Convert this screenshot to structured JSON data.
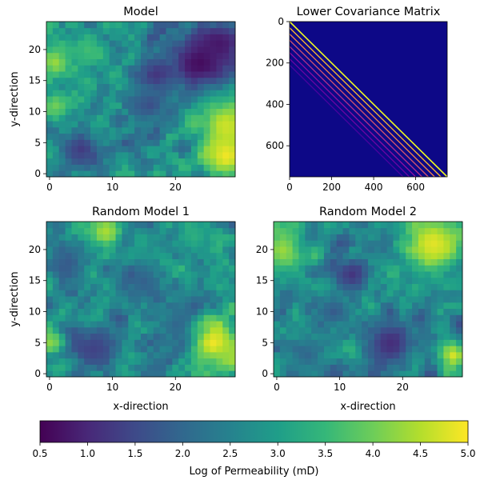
{
  "figure": {
    "colorbar": {
      "label": "Log of Permeability (mD)",
      "range": [
        0.5,
        5.0
      ],
      "ticks": [
        "0.5",
        "1.0",
        "1.5",
        "2.0",
        "2.5",
        "3.0",
        "3.5",
        "4.0",
        "4.5",
        "5.0"
      ],
      "colormap": "viridis"
    }
  },
  "chart_data": [
    {
      "type": "heatmap",
      "title": "Model",
      "xlabel": "",
      "ylabel": "y-direction",
      "nx": 30,
      "ny": 25,
      "x_ticks": [
        0,
        10,
        20
      ],
      "y_ticks": [
        0,
        5,
        10,
        15,
        20
      ],
      "value_range": [
        0.5,
        5.0
      ],
      "features": [
        {
          "x": 24,
          "y": 18,
          "r": 3.5,
          "value": 0.6
        },
        {
          "x": 27,
          "y": 21,
          "r": 2.5,
          "value": 0.8
        },
        {
          "x": 17,
          "y": 16,
          "r": 2.0,
          "value": 1.2
        },
        {
          "x": 5,
          "y": 4,
          "r": 2.2,
          "value": 1.3
        },
        {
          "x": 16,
          "y": 11,
          "r": 2.0,
          "value": 1.6
        },
        {
          "x": 28,
          "y": 8,
          "r": 3.0,
          "value": 4.6
        },
        {
          "x": 28,
          "y": 3,
          "r": 2.5,
          "value": 4.9
        },
        {
          "x": 1,
          "y": 18,
          "r": 1.8,
          "value": 4.3
        },
        {
          "x": 1,
          "y": 11,
          "r": 1.5,
          "value": 4.0
        },
        {
          "x": 6,
          "y": 20,
          "r": 2.0,
          "value": 3.6
        }
      ]
    },
    {
      "type": "heatmap",
      "title": "Lower Covariance Matrix",
      "xlabel": "",
      "ylabel": "",
      "nx": 750,
      "ny": 750,
      "x_ticks": [
        0,
        200,
        400,
        600
      ],
      "y_ticks": [
        0,
        200,
        400,
        600
      ],
      "y_inverted": true,
      "colormap": "plasma",
      "background_value": 0,
      "structure": "banded lower-triangular, bright diagonal bands at offsets of 30 (grid width)",
      "band_offsets": [
        0,
        30,
        60,
        90,
        120,
        150,
        180,
        210
      ],
      "band_values": [
        1.0,
        0.85,
        0.7,
        0.55,
        0.42,
        0.3,
        0.2,
        0.12
      ]
    },
    {
      "type": "heatmap",
      "title": "Random Model 1",
      "xlabel": "x-direction",
      "ylabel": "y-direction",
      "nx": 30,
      "ny": 25,
      "x_ticks": [
        0,
        10,
        20
      ],
      "y_ticks": [
        0,
        5,
        10,
        15,
        20
      ],
      "value_range": [
        0.5,
        5.0
      ],
      "features": [
        {
          "x": 26,
          "y": 5,
          "r": 2.5,
          "value": 4.9
        },
        {
          "x": 9,
          "y": 23,
          "r": 2.0,
          "value": 4.4
        },
        {
          "x": 7,
          "y": 4,
          "r": 2.5,
          "value": 1.4
        },
        {
          "x": 3,
          "y": 18,
          "r": 2.0,
          "value": 1.8
        },
        {
          "x": 15,
          "y": 15,
          "r": 2.0,
          "value": 1.9
        },
        {
          "x": 0,
          "y": 5,
          "r": 1.5,
          "value": 4.2
        },
        {
          "x": 20,
          "y": 8,
          "r": 2.0,
          "value": 2.0
        },
        {
          "x": 23,
          "y": 22,
          "r": 2.0,
          "value": 3.3
        }
      ]
    },
    {
      "type": "heatmap",
      "title": "Random Model 2",
      "xlabel": "x-direction",
      "ylabel": "",
      "nx": 30,
      "ny": 25,
      "x_ticks": [
        0,
        10,
        20
      ],
      "y_ticks": [
        0,
        5,
        10,
        15,
        20
      ],
      "value_range": [
        0.5,
        5.0
      ],
      "features": [
        {
          "x": 25,
          "y": 21,
          "r": 3.5,
          "value": 4.8
        },
        {
          "x": 1,
          "y": 20,
          "r": 2.5,
          "value": 4.3
        },
        {
          "x": 18,
          "y": 5,
          "r": 3.0,
          "value": 1.1
        },
        {
          "x": 12,
          "y": 16,
          "r": 2.0,
          "value": 1.2
        },
        {
          "x": 28,
          "y": 3,
          "r": 1.5,
          "value": 4.7
        },
        {
          "x": 9,
          "y": 10,
          "r": 2.0,
          "value": 1.8
        },
        {
          "x": 5,
          "y": 3,
          "r": 2.0,
          "value": 2.0
        }
      ]
    }
  ]
}
